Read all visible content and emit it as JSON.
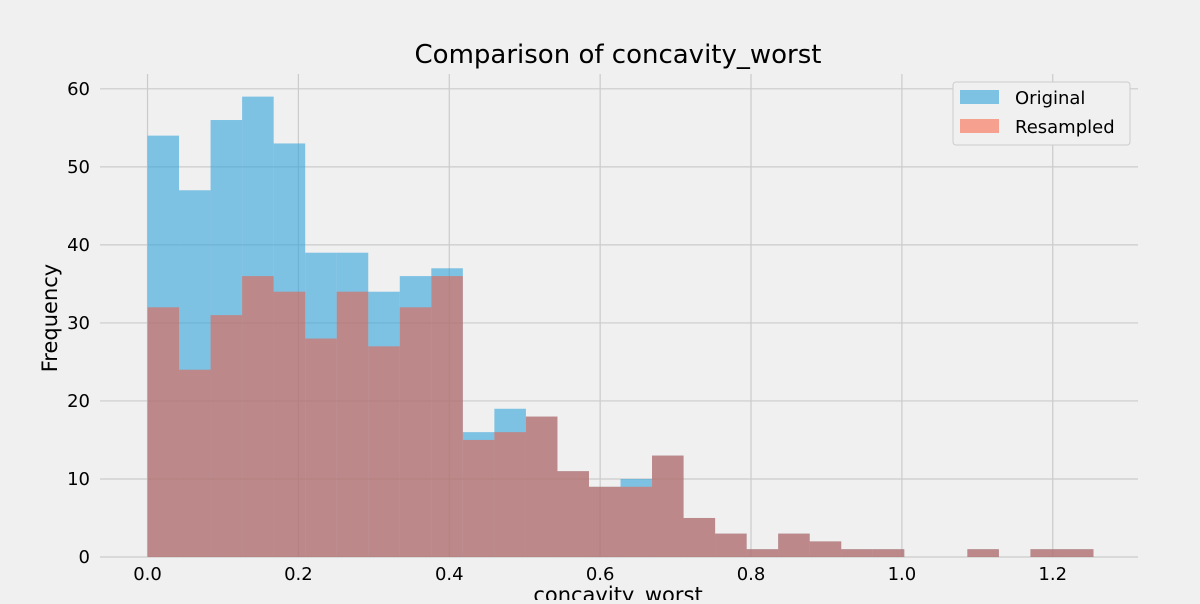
{
  "chart_data": {
    "type": "bar",
    "title": "Comparison of concavity_worst",
    "xlabel": "concavity_worst",
    "ylabel": "Frequency",
    "xlim": [
      -0.063,
      1.313
    ],
    "ylim": [
      0,
      61.9
    ],
    "xticks": [
      0.0,
      0.2,
      0.4,
      0.6,
      0.8,
      1.0,
      1.2
    ],
    "xtick_labels": [
      "0.0",
      "0.2",
      "0.4",
      "0.6",
      "0.8",
      "1.0",
      "1.2"
    ],
    "yticks": [
      0,
      10,
      20,
      30,
      40,
      50,
      60
    ],
    "ytick_labels": [
      "0",
      "10",
      "20",
      "30",
      "40",
      "50",
      "60"
    ],
    "grid": true,
    "legend_position": "top-right",
    "bin_edges": [
      0.0,
      0.0418,
      0.0836,
      0.1254,
      0.1672,
      0.209,
      0.2508,
      0.2926,
      0.3344,
      0.3762,
      0.418,
      0.4598,
      0.5016,
      0.5434,
      0.5852,
      0.627,
      0.6688,
      0.7106,
      0.7524,
      0.7942,
      0.836,
      0.8778,
      0.9196,
      0.9614,
      1.0032,
      1.045,
      1.0868,
      1.1286,
      1.1704,
      1.2122,
      1.254
    ],
    "series": [
      {
        "name": "Original",
        "color": "#30a2da",
        "alpha": 0.6,
        "values": [
          54,
          47,
          56,
          59,
          53,
          39,
          39,
          34,
          36,
          37,
          16,
          19,
          18,
          11,
          9,
          10,
          13,
          5,
          3,
          1,
          3,
          2,
          1,
          1,
          0,
          0,
          1,
          0,
          1,
          1
        ]
      },
      {
        "name": "Resampled",
        "color": "#fc4f30",
        "alpha": 0.5,
        "values": [
          32,
          24,
          31,
          36,
          34,
          28,
          34,
          27,
          32,
          36,
          15,
          16,
          18,
          11,
          9,
          9,
          13,
          5,
          3,
          1,
          3,
          2,
          1,
          1,
          0,
          0,
          1,
          0,
          1,
          1
        ]
      }
    ]
  }
}
